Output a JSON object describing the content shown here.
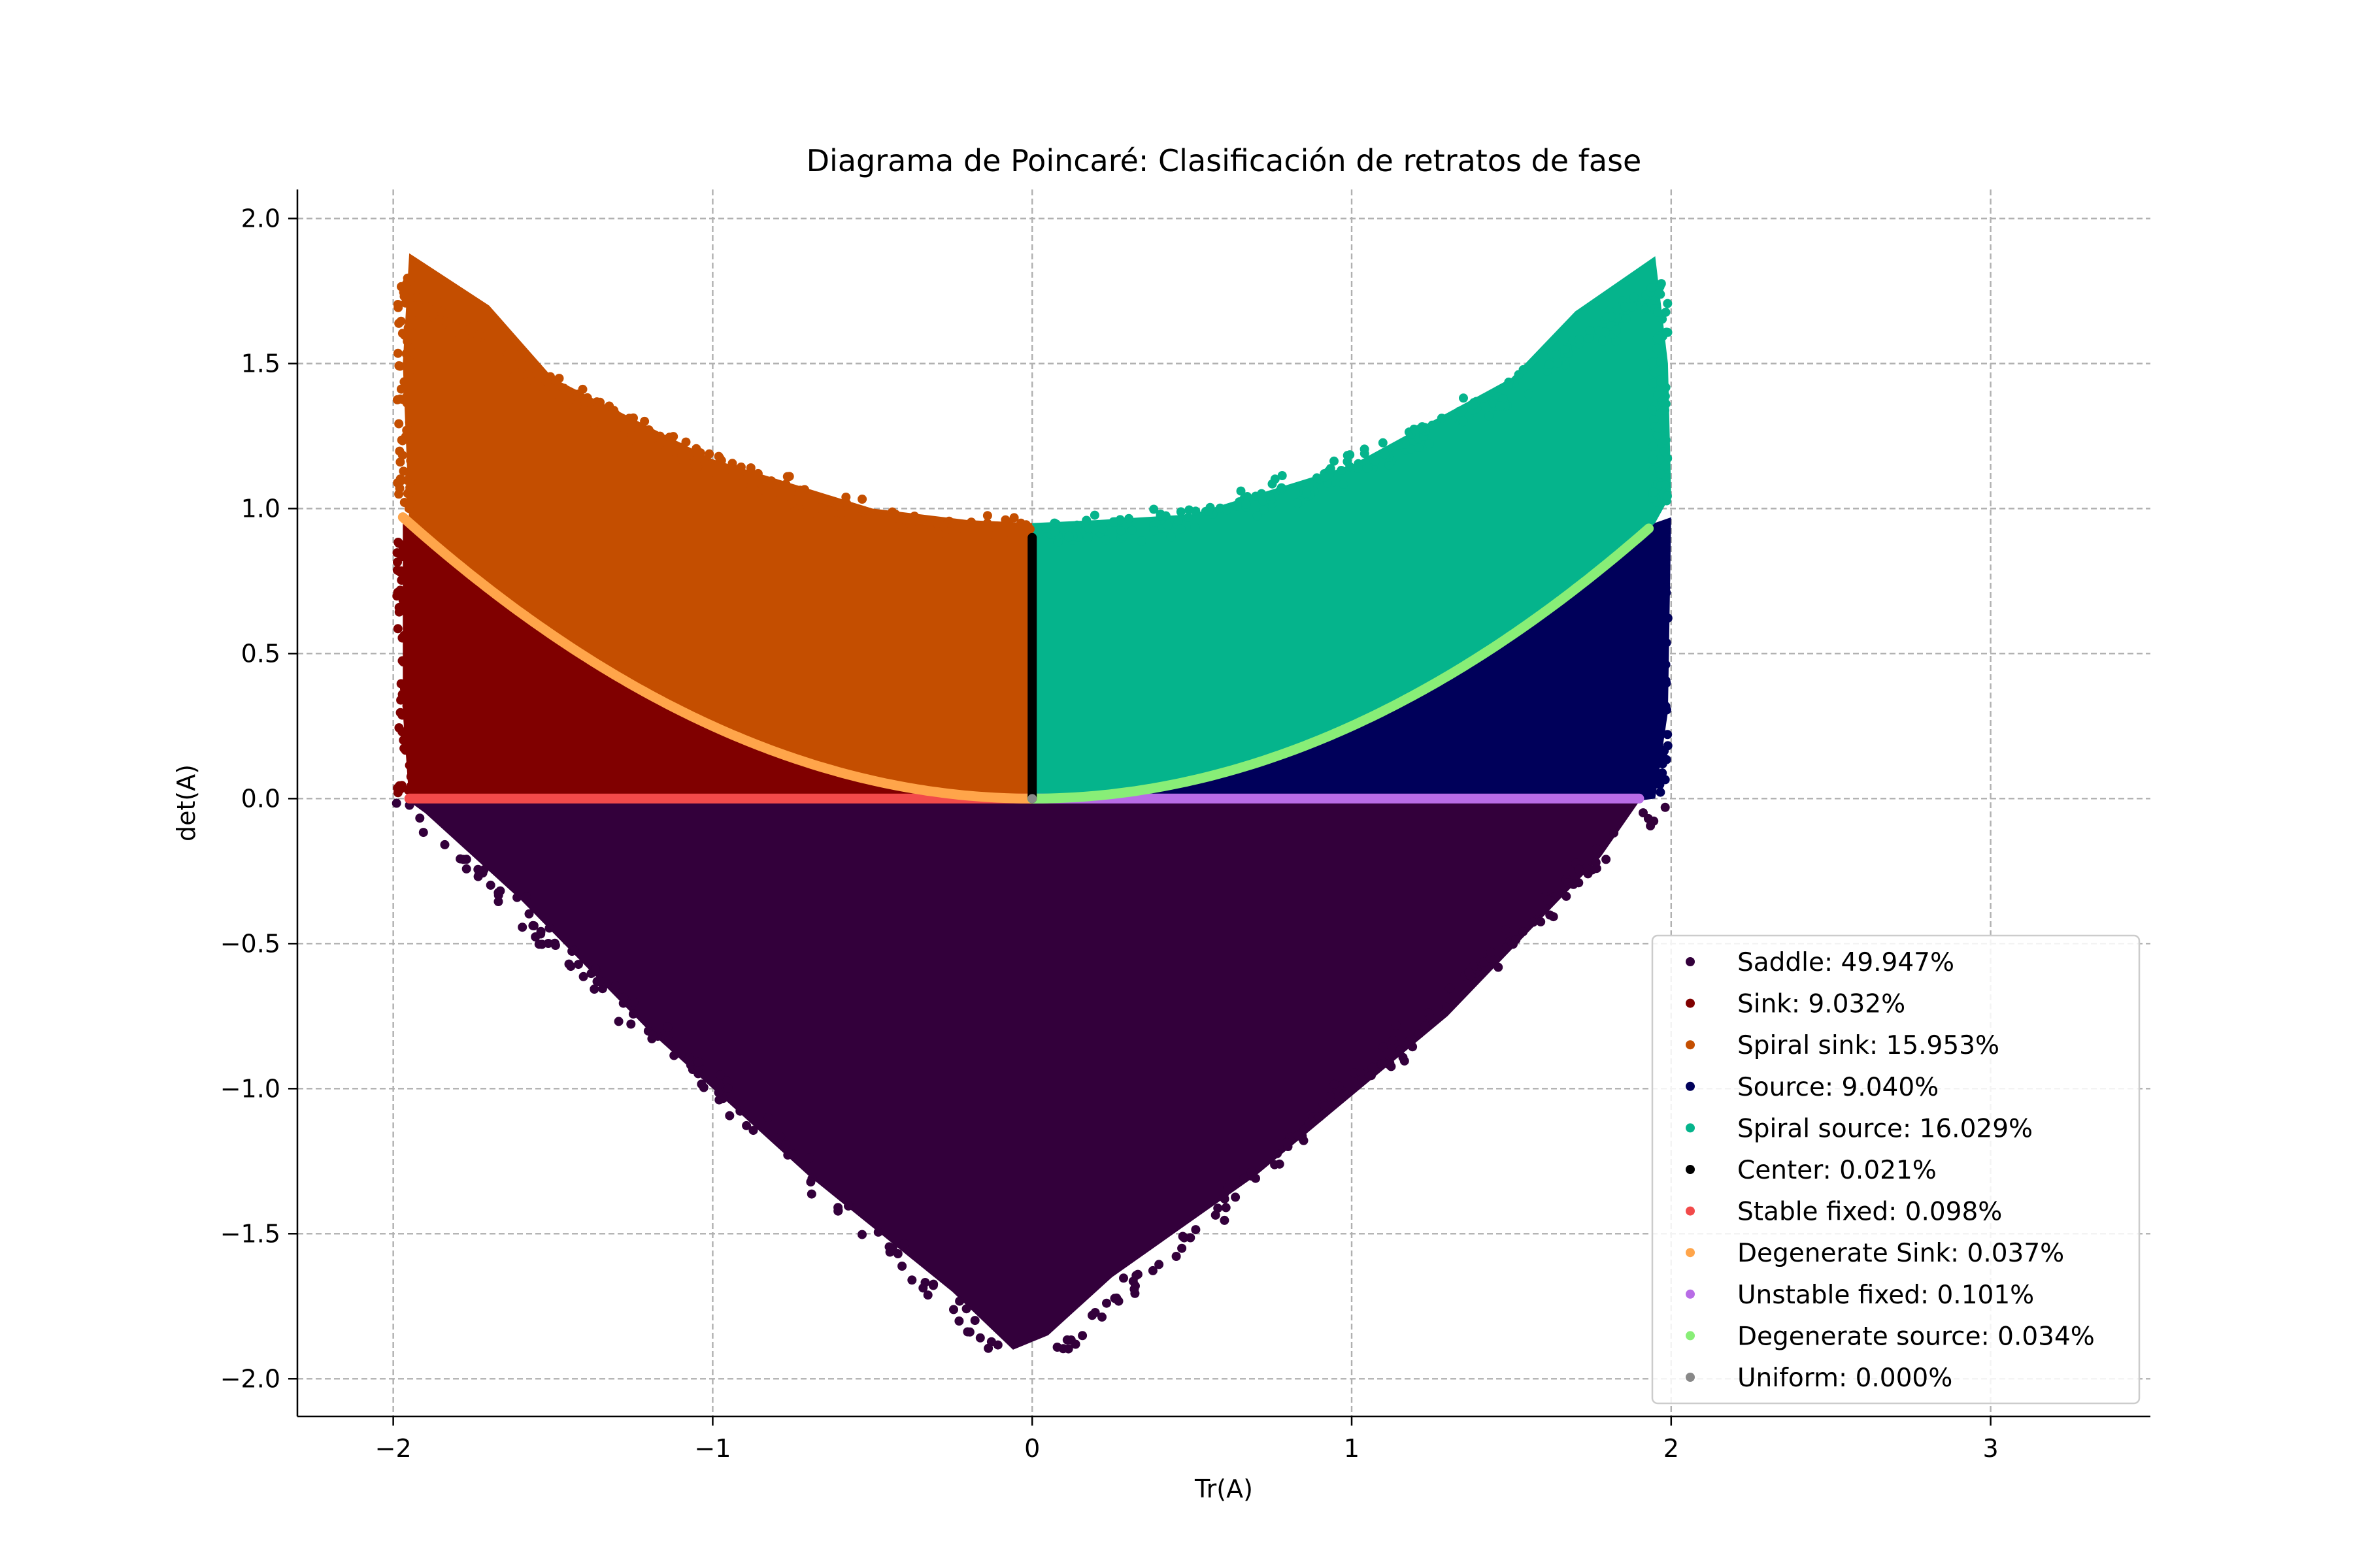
{
  "chart_data": {
    "type": "scatter",
    "title": "Diagrama de Poincaré: Clasificación de retratos de fase",
    "xlabel": "Tr(A)",
    "ylabel": "det(A)",
    "xlim": [
      -2.3,
      3.5
    ],
    "ylim": [
      -2.13,
      2.1
    ],
    "xticks": [
      -2,
      -1,
      0,
      1,
      2,
      3
    ],
    "yticks": [
      -2.0,
      -1.5,
      -1.0,
      -0.5,
      0.0,
      0.5,
      1.0,
      1.5,
      2.0
    ],
    "xtick_labels": [
      "−2",
      "−1",
      "0",
      "1",
      "2",
      "3"
    ],
    "ytick_labels": [
      "−2.0",
      "−1.5",
      "−1.0",
      "−0.5",
      "0.0",
      "0.5",
      "1.0",
      "1.5",
      "2.0"
    ],
    "grid": true,
    "legend_position": "lower-right",
    "series": [
      {
        "name": "Saddle: 49.947%",
        "color": "#33003b",
        "region": "det < 0, |Tr| < 2 - |det|",
        "percent": 49.947
      },
      {
        "name": "Sink: 9.032%",
        "color": "#800000",
        "region": "Tr < 0, 0 < det < Tr²/4",
        "percent": 9.032
      },
      {
        "name": "Spiral sink: 15.953%",
        "color": "#c44e00",
        "region": "Tr < 0, det > Tr²/4",
        "percent": 15.953
      },
      {
        "name": "Source: 9.040%",
        "color": "#00005a",
        "region": "Tr > 0, 0 < det < Tr²/4",
        "percent": 9.04
      },
      {
        "name": "Spiral source: 16.029%",
        "color": "#05b48c",
        "region": "Tr > 0, det > Tr²/4",
        "percent": 16.029
      },
      {
        "name": "Center: 0.021%",
        "color": "#000000",
        "region": "Tr = 0, 0 < det < 0.9",
        "percent": 0.021
      },
      {
        "name": "Stable fixed: 0.098%",
        "color": "#f24a4a",
        "region": "det = 0, -1.95 < Tr < 0",
        "percent": 0.098
      },
      {
        "name": "Degenerate Sink: 0.037%",
        "color": "#ffa54a",
        "region": "det = Tr²/4, -1.97 < Tr < 0",
        "percent": 0.037
      },
      {
        "name": "Unstable fixed: 0.101%",
        "color": "#b86ce6",
        "region": "det = 0, 0 < Tr < 1.9",
        "percent": 0.101
      },
      {
        "name": "Degenerate source: 0.034%",
        "color": "#88ee77",
        "region": "det = Tr²/4, 0 < Tr < 1.93",
        "percent": 0.034
      },
      {
        "name": "Uniform: 0.000%",
        "color": "#888888",
        "region": "Tr = 0, det = 0",
        "percent": 0.0
      }
    ]
  }
}
